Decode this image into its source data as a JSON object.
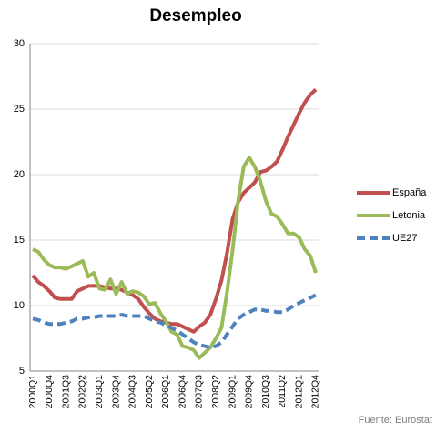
{
  "chart_data": {
    "type": "line",
    "title": "Desempleo",
    "source": "Fuente: Eurostat",
    "categories": [
      "2000Q1",
      null,
      null,
      "2000Q4",
      null,
      null,
      "2001Q3",
      null,
      null,
      "2002Q2",
      null,
      null,
      "2003Q1",
      null,
      null,
      "2003Q4",
      null,
      null,
      "2004Q3",
      null,
      null,
      "2005Q2",
      null,
      null,
      "2006Q1",
      null,
      null,
      "2006Q4",
      null,
      null,
      "2007Q3",
      null,
      null,
      "2008Q2",
      null,
      null,
      "2009Q1",
      null,
      null,
      "2009Q4",
      null,
      null,
      "2010Q3",
      null,
      null,
      "2011Q2",
      null,
      null,
      "2012Q1",
      null,
      null,
      "2012Q4"
    ],
    "series": [
      {
        "name": "España",
        "color": "#c0504d",
        "dash": false,
        "values": [
          12.3,
          11.8,
          11.5,
          11.1,
          10.6,
          10.5,
          10.5,
          10.5,
          11.1,
          11.3,
          11.5,
          11.5,
          11.5,
          11.4,
          11.3,
          11.3,
          11.2,
          11.0,
          10.8,
          10.5,
          9.9,
          9.4,
          9.0,
          8.8,
          8.7,
          8.6,
          8.6,
          8.4,
          8.2,
          8.0,
          8.4,
          8.7,
          9.3,
          10.5,
          11.9,
          14.0,
          16.6,
          17.9,
          18.6,
          19.0,
          19.4,
          20.2,
          20.3,
          20.6,
          21.0,
          21.9,
          22.9,
          23.8,
          24.7,
          25.5,
          26.1,
          26.5
        ]
      },
      {
        "name": "Letonia",
        "color": "#9bbb59",
        "dash": false,
        "values": [
          14.3,
          14.1,
          13.5,
          13.1,
          12.9,
          12.9,
          12.8,
          13.0,
          13.2,
          13.4,
          12.2,
          12.5,
          11.3,
          11.2,
          12.0,
          10.9,
          11.8,
          10.9,
          11.1,
          11.0,
          10.7,
          10.1,
          10.2,
          9.4,
          8.8,
          8.0,
          7.8,
          6.9,
          6.8,
          6.6,
          6.0,
          6.4,
          6.8,
          7.5,
          8.3,
          11.0,
          14.2,
          18.0,
          20.6,
          21.3,
          20.6,
          19.5,
          18.0,
          17.0,
          16.8,
          16.2,
          15.5,
          15.5,
          15.2,
          14.3,
          13.8,
          12.5
        ]
      },
      {
        "name": "UE27",
        "color": "#4f81bd",
        "dash": true,
        "values": [
          9.0,
          8.9,
          8.7,
          8.6,
          8.6,
          8.6,
          8.7,
          8.8,
          9.0,
          9.0,
          9.1,
          9.1,
          9.2,
          9.2,
          9.2,
          9.2,
          9.3,
          9.2,
          9.2,
          9.2,
          9.2,
          9.0,
          8.8,
          8.7,
          8.5,
          8.3,
          8.1,
          7.8,
          7.5,
          7.2,
          7.0,
          6.9,
          6.8,
          6.9,
          7.2,
          7.8,
          8.4,
          9.0,
          9.3,
          9.5,
          9.7,
          9.7,
          9.6,
          9.6,
          9.5,
          9.5,
          9.7,
          10.0,
          10.2,
          10.4,
          10.6,
          10.8
        ]
      }
    ],
    "ylim": [
      5,
      30
    ],
    "yticks": [
      5,
      10,
      15,
      20,
      25,
      30
    ],
    "grid": true,
    "legend": "right"
  }
}
